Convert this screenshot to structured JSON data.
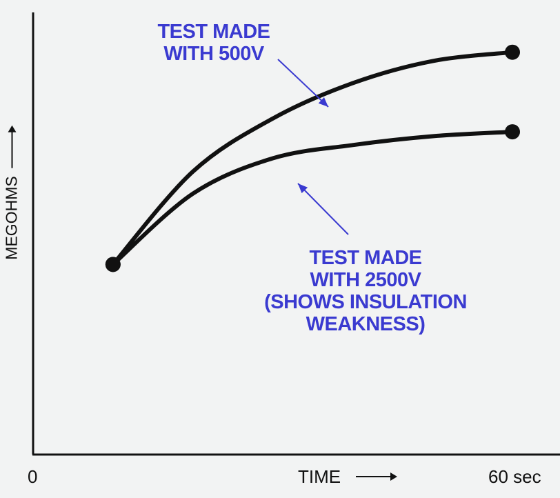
{
  "chart_data": {
    "type": "line",
    "title": "",
    "xlabel": "TIME",
    "ylabel": "MEGOHMS",
    "x_tick_labels": {
      "start": "0",
      "end": "60 sec"
    },
    "x_range": [
      0,
      60
    ],
    "y_range": [
      0,
      100
    ],
    "grid": false,
    "series": [
      {
        "name": "TEST MADE WITH 500V",
        "x": [
          10,
          20,
          30,
          40,
          50,
          60
        ],
        "y": [
          43,
          64,
          76,
          84,
          89,
          91
        ]
      },
      {
        "name": "TEST MADE WITH 2500V (SHOWS INSULATION WEAKNESS)",
        "x": [
          10,
          20,
          30,
          40,
          50,
          60
        ],
        "y": [
          43,
          59,
          67,
          70,
          72,
          73
        ]
      }
    ],
    "annotations": [
      {
        "lines": [
          "TEST MADE",
          "WITH 500V"
        ],
        "points_to": "TEST MADE WITH 500V"
      },
      {
        "lines": [
          "TEST MADE",
          "WITH 2500V",
          "(SHOWS INSULATION",
          "WEAKNESS)"
        ],
        "points_to": "TEST MADE WITH 2500V (SHOWS INSULATION WEAKNESS)"
      }
    ]
  },
  "colors": {
    "background": "#f2f3f3",
    "axis": "#111111",
    "curve": "#111111",
    "annotation": "#3a3ad0"
  }
}
